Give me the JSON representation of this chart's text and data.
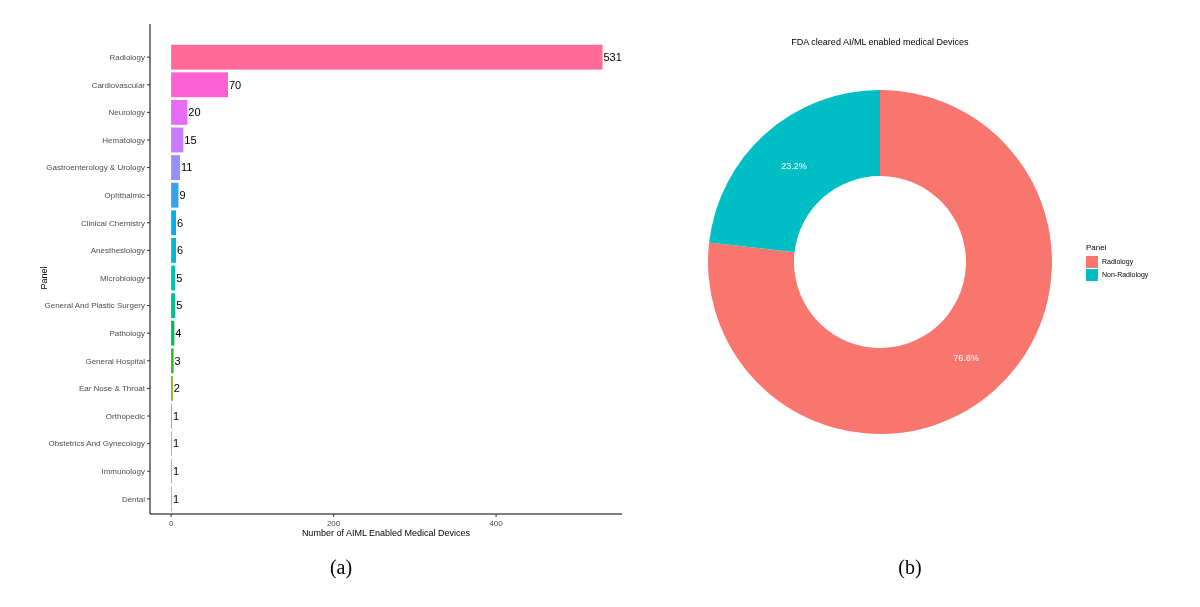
{
  "chart_data": [
    {
      "type": "bar",
      "orientation": "horizontal",
      "xlabel": "Number of AIML Enabled Medical Devices",
      "ylabel": "Panel",
      "categories": [
        "Radiology",
        "Cardiovascular",
        "Neurology",
        "Hematology",
        "Gastroenterology & Urology",
        "Ophthalmic",
        "Clinical Chemistry",
        "Anesthesiology",
        "Microbiology",
        "General And Plastic Surgery",
        "Pathology",
        "General Hospital",
        "Ear Nose & Throat",
        "Orthopedic",
        "Obstetrics And Gynecology",
        "Immunology",
        "Dental"
      ],
      "values": [
        531,
        70,
        20,
        15,
        11,
        9,
        6,
        6,
        5,
        5,
        4,
        3,
        2,
        1,
        1,
        1,
        1
      ],
      "colors": [
        "#ff6a98",
        "#fc61d5",
        "#e76bf3",
        "#c77cff",
        "#9590ff",
        "#35a2f0",
        "#00aef0",
        "#00b8d4",
        "#00bfb0",
        "#00c08b",
        "#00ba5a",
        "#2eb52a",
        "#7cae00",
        "#b5a300",
        "#cf9a40",
        "#dd9060",
        "#ee8a88"
      ],
      "xlim": [
        -26,
        555
      ],
      "xticks": [
        0,
        200,
        400
      ],
      "data_labels": true,
      "grid": false,
      "annotations": [
        "(a)"
      ]
    },
    {
      "type": "donut",
      "title": "FDA cleared AI/ML enabled medical Devices",
      "legend_title": "Panel",
      "categories": [
        "Radiology",
        "Non-Radiology"
      ],
      "values": [
        76.8,
        23.2
      ],
      "colors": [
        "#f8766d",
        "#00bfc4"
      ],
      "value_labels": [
        "76.8%",
        "23.2%"
      ],
      "legend": "right",
      "annotations": [
        "(b)"
      ]
    }
  ]
}
